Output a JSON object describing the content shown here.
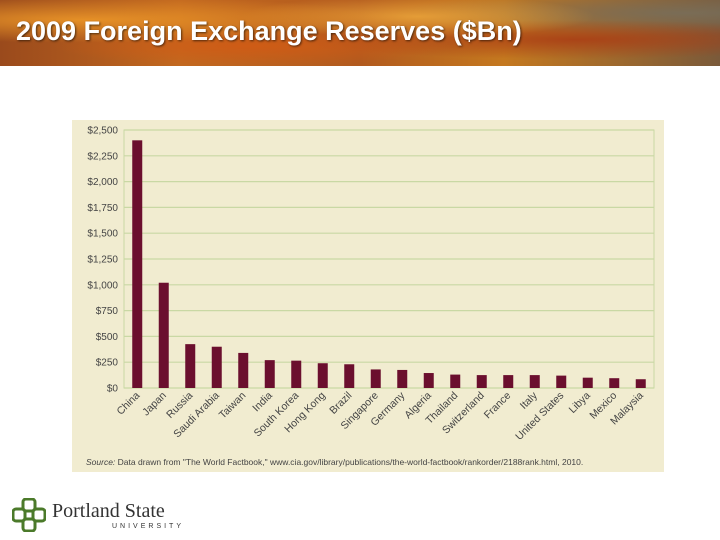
{
  "slide": {
    "title": "2009 Foreign Exchange Reserves ($Bn)",
    "banner_color": "#b25a1e",
    "title_color": "#ffffff"
  },
  "chart_data": {
    "type": "bar",
    "categories": [
      "China",
      "Japan",
      "Russia",
      "Saudi Arabia",
      "Taiwan",
      "India",
      "South Korea",
      "Hong Kong",
      "Brazil",
      "Singapore",
      "Germany",
      "Algeria",
      "Thailand",
      "Switzerland",
      "France",
      "Italy",
      "United States",
      "Libya",
      "Mexico",
      "Malaysia"
    ],
    "values": [
      2400,
      1020,
      425,
      400,
      340,
      270,
      265,
      240,
      230,
      180,
      175,
      145,
      130,
      125,
      125,
      125,
      120,
      100,
      95,
      85
    ],
    "ylim": [
      0,
      2500
    ],
    "yticks": [
      0,
      250,
      500,
      750,
      1000,
      1250,
      1500,
      1750,
      2000,
      2250,
      2500
    ],
    "ytick_labels": [
      "$0",
      "$250",
      "$500",
      "$750",
      "$1,000",
      "$1,250",
      "$1,500",
      "$1,750",
      "$2,000",
      "$2,250",
      "$2,500"
    ],
    "grid": true,
    "bar_color": "#6b0f2e",
    "background_color": "#f1ecd0",
    "grid_color": "#c9d8a4",
    "source_label": "Source:",
    "source_text": "Data drawn from \"The World Factbook,\" www.cia.gov/library/publications/the-world-factbook/rankorder/2188rank.html, 2010."
  },
  "footer": {
    "logo_name": "Portland State",
    "logo_sub": "UNIVERSITY",
    "logo_color": "#4b7a2a"
  }
}
